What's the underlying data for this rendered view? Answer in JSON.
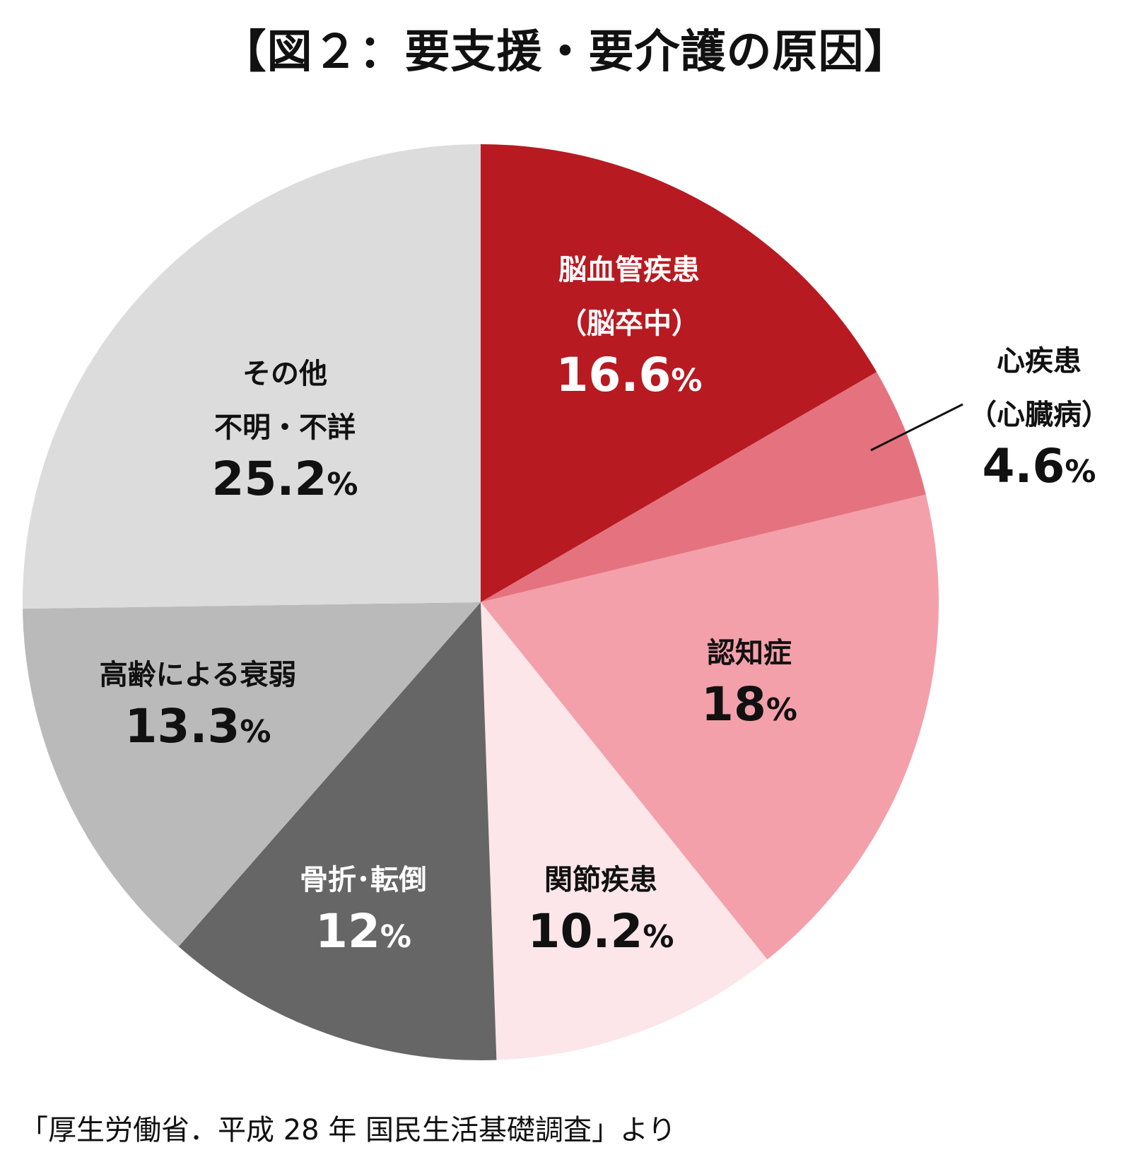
{
  "title": "【図２：要支援・要介護の原因】",
  "source": "「厚生労働省．平成 28 年 国民生活基礎調査」より",
  "chart_data": {
    "type": "pie",
    "title": "【図２：要支援・要介護の原因】",
    "start": "12 o'clock",
    "direction": "clockwise",
    "slices": [
      {
        "label_lines": [
          "脳血管疾患",
          "（脳卒中）"
        ],
        "value": 16.6,
        "value_label": "16.6",
        "unit": "%",
        "color": "#B81A22",
        "text_color": "#FFFFFF"
      },
      {
        "label_lines": [
          "心疾患",
          "（心臓病）"
        ],
        "value": 4.6,
        "value_label": "4.6",
        "unit": "%",
        "color": "#E4737F",
        "text_color": "#111111",
        "outside": true
      },
      {
        "label_lines": [
          "認知症"
        ],
        "value": 18,
        "value_label": "18",
        "unit": "%",
        "color": "#F3A0AB",
        "text_color": "#111111"
      },
      {
        "label_lines": [
          "関節疾患"
        ],
        "value": 10.2,
        "value_label": "10.2",
        "unit": "%",
        "color": "#FCE6EA",
        "text_color": "#111111"
      },
      {
        "label_lines": [
          "骨折･転倒"
        ],
        "value": 12,
        "value_label": "12",
        "unit": "%",
        "color": "#666666",
        "text_color": "#FFFFFF"
      },
      {
        "label_lines": [
          "高齢による衰弱"
        ],
        "value": 13.3,
        "value_label": "13.3",
        "unit": "%",
        "color": "#BABABA",
        "text_color": "#111111"
      },
      {
        "label_lines": [
          "その他",
          "不明・不詳"
        ],
        "value": 25.2,
        "value_label": "25.2",
        "unit": "%",
        "color": "#DDDCDD",
        "text_color": "#111111"
      }
    ]
  }
}
